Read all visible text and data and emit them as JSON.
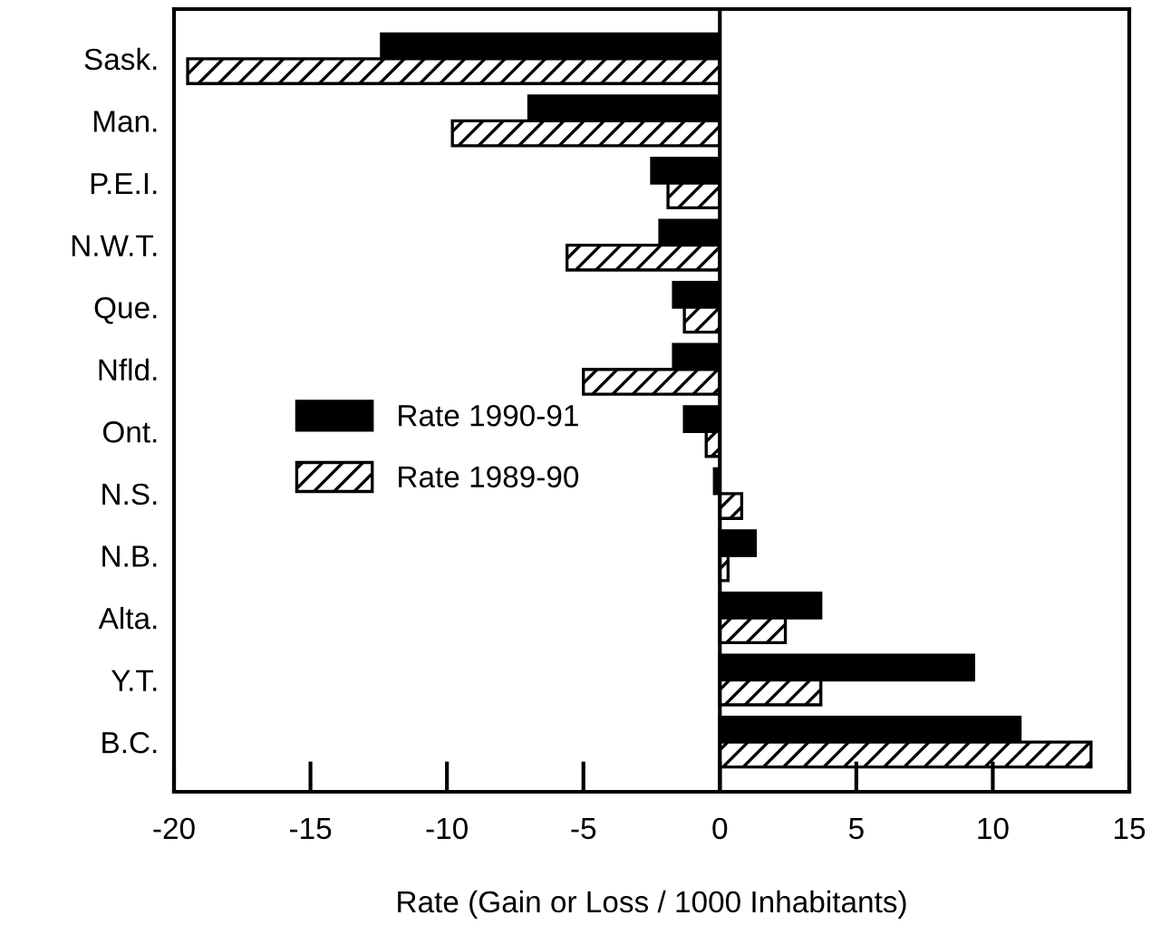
{
  "chart_data": {
    "type": "bar",
    "orientation": "horizontal",
    "xlabel": "Rate (Gain or Loss / 1000 Inhabitants)",
    "categories": [
      "Sask.",
      "Man.",
      "P.E.I.",
      "N.W.T.",
      "Que.",
      "Nfld.",
      "Ont.",
      "N.S.",
      "N.B.",
      "Alta.",
      "Y.T.",
      "B.C."
    ],
    "series": [
      {
        "name": "Rate 1990-91",
        "color": "#000000",
        "values": [
          -12.4,
          -7.0,
          -2.5,
          -2.2,
          -1.7,
          -1.7,
          -1.3,
          -0.2,
          1.3,
          3.7,
          9.3,
          11.0
        ]
      },
      {
        "name": "Rate 1989-90",
        "color": "#000000",
        "values": [
          -19.5,
          -9.8,
          -1.9,
          -5.6,
          -1.3,
          -5.0,
          -0.5,
          0.8,
          0.3,
          2.4,
          3.7,
          13.6
        ]
      }
    ],
    "xlim": [
      -20,
      15
    ],
    "xticks": [
      -20,
      -15,
      -10,
      -5,
      0,
      5,
      10,
      15
    ],
    "legend": "left"
  }
}
